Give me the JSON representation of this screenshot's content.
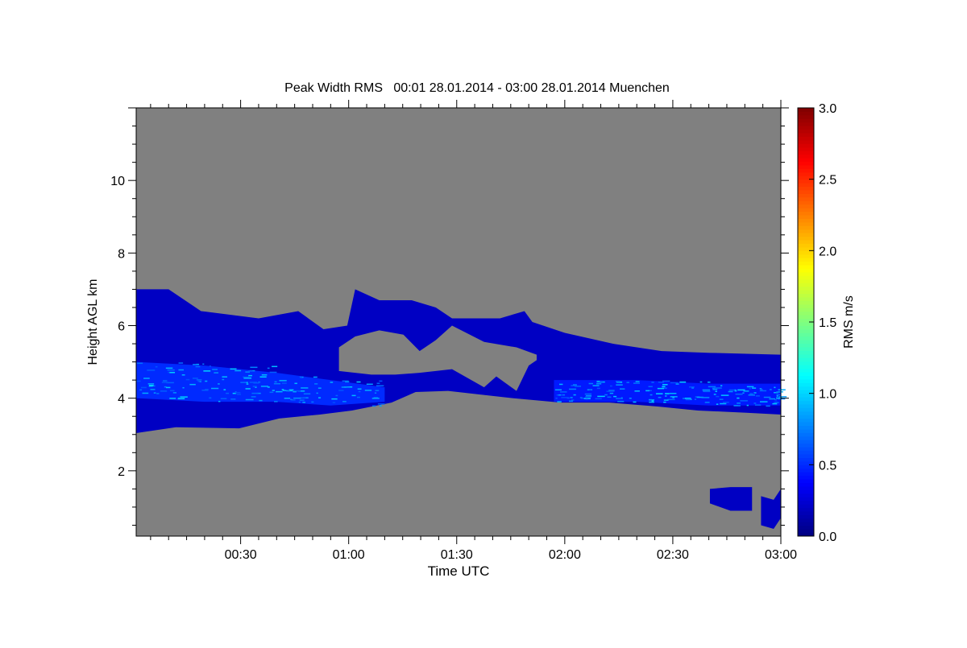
{
  "chart_data": {
    "type": "heatmap",
    "title": "Peak Width RMS   00:01 28.01.2014 - 03:00 28.01.2014 Muenchen",
    "xlabel": "Time UTC",
    "ylabel": "Height AGL km",
    "xlim_minutes": [
      1,
      180
    ],
    "ylim_km": [
      0.2,
      12.0
    ],
    "x_ticks": [
      {
        "minutes": 30,
        "label": "00:30"
      },
      {
        "minutes": 60,
        "label": "01:00"
      },
      {
        "minutes": 90,
        "label": "01:30"
      },
      {
        "minutes": 120,
        "label": "02:00"
      },
      {
        "minutes": 150,
        "label": "02:30"
      },
      {
        "minutes": 180,
        "label": "03:00"
      }
    ],
    "x_minor_step_minutes": 5,
    "y_ticks": [
      {
        "km": 2,
        "label": "2"
      },
      {
        "km": 4,
        "label": "4"
      },
      {
        "km": 6,
        "label": "6"
      },
      {
        "km": 8,
        "label": "8"
      },
      {
        "km": 10,
        "label": "10"
      }
    ],
    "y_minor_step_km": 0.5,
    "background_color": "#808080",
    "colorbar": {
      "label": "RMS m/s",
      "range": [
        0.0,
        3.0
      ],
      "ticks": [
        "0.0",
        "0.5",
        "1.0",
        "1.5",
        "2.0",
        "2.5",
        "3.0"
      ],
      "colormap": [
        "#00007f",
        "#0000ff",
        "#007fff",
        "#00ffff",
        "#7fff7f",
        "#ffff00",
        "#ff7f00",
        "#ff0000",
        "#7f0000"
      ]
    },
    "regions": [
      {
        "name": "cloud-layer",
        "value": 0.2,
        "top": [
          [
            1,
            7.0
          ],
          [
            10,
            7.0
          ],
          [
            19,
            6.4
          ],
          [
            35,
            6.2
          ],
          [
            46,
            6.4
          ],
          [
            53,
            5.9
          ],
          [
            59.6,
            6.0
          ],
          [
            61.8,
            7.0
          ],
          [
            68.5,
            6.7
          ],
          [
            77.5,
            6.7
          ],
          [
            84.2,
            6.5
          ],
          [
            88.7,
            6.2
          ],
          [
            102,
            6.2
          ],
          [
            108.8,
            6.4
          ],
          [
            111,
            6.1
          ],
          [
            120,
            5.8
          ],
          [
            133.4,
            5.5
          ],
          [
            146.9,
            5.3
          ],
          [
            160.3,
            5.25
          ],
          [
            180,
            5.2
          ]
        ],
        "bottom": [
          [
            1,
            3.04
          ],
          [
            12,
            3.2
          ],
          [
            29.6,
            3.17
          ],
          [
            40.7,
            3.44
          ],
          [
            52,
            3.55
          ],
          [
            60.9,
            3.66
          ],
          [
            71.9,
            3.88
          ],
          [
            78.6,
            4.17
          ],
          [
            87.6,
            4.2
          ],
          [
            96.5,
            4.1
          ],
          [
            105.5,
            4.0
          ],
          [
            118.9,
            3.88
          ],
          [
            132.3,
            3.88
          ],
          [
            145.8,
            3.77
          ],
          [
            157,
            3.66
          ],
          [
            170.4,
            3.6
          ],
          [
            180,
            3.55
          ]
        ]
      },
      {
        "name": "core-band-1",
        "value": 0.5,
        "top": [
          [
            1,
            5.0
          ],
          [
            20,
            4.9
          ],
          [
            40,
            4.7
          ],
          [
            55,
            4.5
          ],
          [
            70,
            4.3
          ]
        ],
        "bottom": [
          [
            1,
            4.0
          ],
          [
            20,
            3.9
          ],
          [
            40,
            3.9
          ],
          [
            55,
            3.8
          ],
          [
            70,
            3.9
          ]
        ]
      },
      {
        "name": "core-band-2",
        "value": 0.45,
        "top": [
          [
            117,
            4.5
          ],
          [
            140,
            4.5
          ],
          [
            160,
            4.4
          ],
          [
            180,
            4.4
          ]
        ],
        "bottom": [
          [
            117,
            3.9
          ],
          [
            140,
            3.9
          ],
          [
            160,
            3.8
          ],
          [
            180,
            3.8
          ]
        ]
      },
      {
        "name": "no-data-gap",
        "value": null,
        "top": [
          [
            57.3,
            5.4
          ],
          [
            61.8,
            5.7
          ],
          [
            68.5,
            5.87
          ],
          [
            75.2,
            5.75
          ],
          [
            79.7,
            5.3
          ],
          [
            84.2,
            5.6
          ],
          [
            88.7,
            6.0
          ],
          [
            97.6,
            5.55
          ],
          [
            106.6,
            5.4
          ],
          [
            112.2,
            5.2
          ]
        ],
        "bottom": [
          [
            57.3,
            4.75
          ],
          [
            66.3,
            4.65
          ],
          [
            72.9,
            4.65
          ],
          [
            79.7,
            4.7
          ],
          [
            88.7,
            4.8
          ],
          [
            97.6,
            4.3
          ],
          [
            101,
            4.6
          ],
          [
            106.6,
            4.2
          ],
          [
            110,
            4.9
          ],
          [
            112.2,
            5.05
          ]
        ]
      },
      {
        "name": "low-cloud-1",
        "value": 0.2,
        "top": [
          [
            160.3,
            1.5
          ],
          [
            166,
            1.55
          ],
          [
            172,
            1.55
          ]
        ],
        "bottom": [
          [
            160.3,
            1.1
          ],
          [
            166,
            0.9
          ],
          [
            172,
            0.9
          ]
        ]
      },
      {
        "name": "low-cloud-2",
        "value": 0.2,
        "top": [
          [
            174.5,
            1.3
          ],
          [
            178,
            1.2
          ],
          [
            180,
            1.5
          ]
        ],
        "bottom": [
          [
            174.5,
            0.5
          ],
          [
            178,
            0.4
          ],
          [
            180,
            0.7
          ]
        ]
      }
    ]
  }
}
